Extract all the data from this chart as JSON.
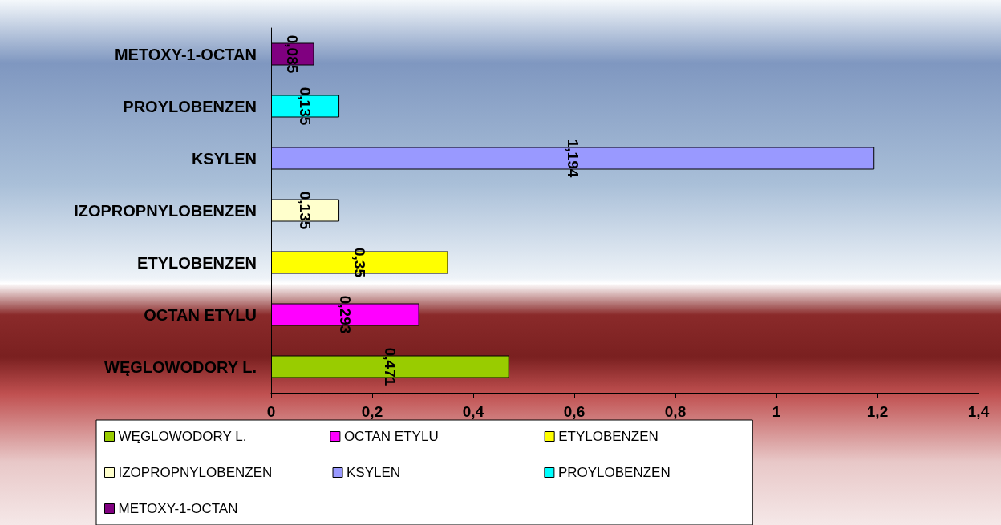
{
  "chart_data": {
    "type": "bar",
    "orientation": "horizontal",
    "categories": [
      "METOXY-1-OCTAN",
      "PROYLOBENZEN",
      "KSYLEN",
      "IZOPROPNYLOBENZEN",
      "ETYLOBENZEN",
      "OCTAN ETYLU",
      "WĘGLOWODORY L."
    ],
    "series": [
      {
        "name": "WĘGLOWODORY L.",
        "color": "#99cc00",
        "values": [
          null,
          null,
          null,
          null,
          null,
          null,
          0.471
        ],
        "value_labels": [
          null,
          null,
          null,
          null,
          null,
          null,
          "0,471"
        ]
      },
      {
        "name": "OCTAN ETYLU",
        "color": "#ff00ff",
        "values": [
          null,
          null,
          null,
          null,
          null,
          0.293,
          null
        ],
        "value_labels": [
          null,
          null,
          null,
          null,
          null,
          "0,293",
          null
        ]
      },
      {
        "name": "ETYLOBENZEN",
        "color": "#ffff00",
        "values": [
          null,
          null,
          null,
          null,
          0.35,
          null,
          null
        ],
        "value_labels": [
          null,
          null,
          null,
          null,
          "0,35",
          null,
          null
        ]
      },
      {
        "name": "IZOPROPNYLOBENZEN",
        "color": "#ffffcc",
        "values": [
          null,
          null,
          null,
          0.135,
          null,
          null,
          null
        ],
        "value_labels": [
          null,
          null,
          null,
          "0,135",
          null,
          null,
          null
        ]
      },
      {
        "name": "KSYLEN",
        "color": "#9999ff",
        "values": [
          null,
          null,
          1.194,
          null,
          null,
          null,
          null
        ],
        "value_labels": [
          null,
          null,
          "1,194",
          null,
          null,
          null,
          null
        ]
      },
      {
        "name": "PROYLOBENZEN",
        "color": "#00ffff",
        "values": [
          null,
          0.135,
          null,
          null,
          null,
          null,
          null
        ],
        "value_labels": [
          null,
          "0,135",
          null,
          null,
          null,
          null,
          null
        ]
      },
      {
        "name": "METOXY-1-OCTAN",
        "color": "#800080",
        "values": [
          0.085,
          null,
          null,
          null,
          null,
          null,
          null
        ],
        "value_labels": [
          "0,085",
          null,
          null,
          null,
          null,
          null,
          null
        ]
      }
    ],
    "xlim": [
      0,
      1.4
    ],
    "xticks": [
      0,
      {
        "value": 0.2,
        "label": "0,2"
      },
      {
        "value": 0.4,
        "label": "0,4"
      },
      {
        "value": 0.6,
        "label": "0,6"
      },
      {
        "value": 0.8,
        "label": "0,8"
      },
      1,
      {
        "value": 1.2,
        "label": "1,2"
      },
      {
        "value": 1.4,
        "label": "1,4"
      }
    ],
    "grid": false,
    "legend": "bottom"
  }
}
